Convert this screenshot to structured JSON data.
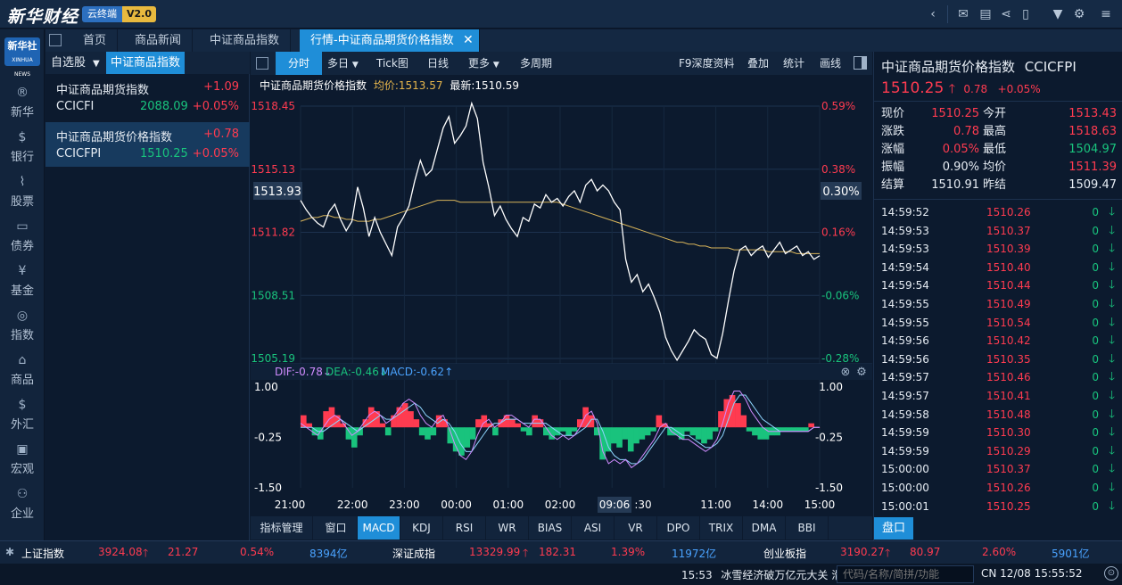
{
  "app": {
    "logo_text": "新华财经",
    "cloud_label": "云终端",
    "version": "V2.0"
  },
  "tabs": [
    "首页",
    "商品新闻",
    "中证商品指数",
    "行情-中证商品期货价格指数"
  ],
  "nav": [
    "新华",
    "银行",
    "股票",
    "债券",
    "基金",
    "指数",
    "商品",
    "外汇",
    "宏观",
    "企业"
  ],
  "nav_logo": "新华社",
  "watch": {
    "dropdown": "自选股",
    "tab": "中证商品指数",
    "items": [
      {
        "name": "中证商品期货指数",
        "change": "+1.09",
        "code": "CCICFI",
        "price": "2088.09",
        "pct": "+0.05%"
      },
      {
        "name": "中证商品期货价格指数",
        "change": "+0.78",
        "code": "CCICFPI",
        "price": "1510.25",
        "pct": "+0.05%"
      }
    ]
  },
  "chart_toolbar": {
    "left": [
      "分时",
      "多日",
      "Tick图",
      "日线",
      "更多",
      "多周期"
    ],
    "right": [
      "F9深度资料",
      "叠加",
      "统计",
      "画线"
    ]
  },
  "chart_header": {
    "name": "中证商品期货价格指数",
    "avg_label": "均价:1513.57",
    "last_label": "最新:1510.59"
  },
  "chart_data": {
    "type": "line",
    "title": "中证商品期货价格指数",
    "price_axis": [
      "1518.45",
      "1515.13",
      "1511.82",
      "1508.51",
      "1505.19"
    ],
    "pct_axis": [
      "0.59%",
      "0.38%",
      "0.16%",
      "-0.06%",
      "-0.28%"
    ],
    "ylim": [
      1505.19,
      1518.45
    ],
    "cursor_price": "1513.93",
    "cursor_pct": "0.30%",
    "x_ticks": [
      "21:00",
      "22:00",
      "23:00",
      "00:00",
      "01:00",
      "02:00",
      "09:06",
      ":30",
      "11:00",
      "14:00",
      "15:00"
    ],
    "series": [
      {
        "name": "最新",
        "color": "#ffffff",
        "values": [
          1513.5,
          1513,
          1512.6,
          1512.3,
          1512.1,
          1512.9,
          1513.3,
          1512.5,
          1511.9,
          1512.4,
          1514.2,
          1513.1,
          1511.6,
          1512.6,
          1511.8,
          1511.2,
          1510.6,
          1512.1,
          1512.6,
          1513.2,
          1514.5,
          1515.6,
          1514.8,
          1515.1,
          1516.2,
          1517.3,
          1517.9,
          1516.5,
          1516.9,
          1517.4,
          1518.6,
          1517.8,
          1515.5,
          1514.2,
          1512.7,
          1513.2,
          1512.5,
          1512,
          1511.6,
          1512.6,
          1512.4,
          1513.3,
          1513.1,
          1513.8,
          1513.4,
          1513.6,
          1513.2,
          1513.7,
          1514,
          1513.4,
          1514.3,
          1514.6,
          1514,
          1514.3,
          1514,
          1513.4,
          1513,
          1510.4,
          1509.2,
          1509.6,
          1508.7,
          1509.1,
          1508.4,
          1507.6,
          1506.3,
          1505.6,
          1505.1,
          1505.6,
          1506.1,
          1506.7,
          1506.4,
          1506.2,
          1505.4,
          1505.2,
          1506.5,
          1508.2,
          1509.8,
          1510.9,
          1511.1,
          1510.6,
          1510.9,
          1511.1,
          1510.5,
          1510.9,
          1511.3,
          1510.7,
          1510.9,
          1511.1,
          1510.6,
          1510.8,
          1510.4,
          1510.59
        ]
      },
      {
        "name": "均价",
        "color": "#d8b45a",
        "values": [
          1512.4,
          1512.5,
          1512.6,
          1512.6,
          1512.7,
          1512.7,
          1512.6,
          1512.6,
          1512.5,
          1512.5,
          1512.4,
          1512.4,
          1512.4,
          1512.5,
          1512.5,
          1512.6,
          1512.7,
          1512.8,
          1512.9,
          1513,
          1513.1,
          1513.2,
          1513.3,
          1513.4,
          1513.5,
          1513.5,
          1513.5,
          1513.5,
          1513.4,
          1513.4,
          1513.4,
          1513.4,
          1513.4,
          1513.4,
          1513.4,
          1513.4,
          1513.4,
          1513.4,
          1513.4,
          1513.4,
          1513.4,
          1513.4,
          1513.4,
          1513.4,
          1513.4,
          1513.4,
          1513.3,
          1513.2,
          1513.1,
          1513,
          1512.9,
          1512.8,
          1512.7,
          1512.6,
          1512.5,
          1512.4,
          1512.3,
          1512.2,
          1512.1,
          1512,
          1511.9,
          1511.8,
          1511.7,
          1511.6,
          1511.5,
          1511.4,
          1511.3,
          1511.3,
          1511.2,
          1511.2,
          1511.1,
          1511.1,
          1511,
          1511,
          1511,
          1511,
          1510.9,
          1510.9,
          1510.9,
          1510.9,
          1510.9,
          1510.9,
          1510.8,
          1510.8,
          1510.8,
          1510.8,
          1510.8,
          1510.7,
          1510.7,
          1510.7,
          1510.7,
          1510.7
        ]
      }
    ]
  },
  "macd": {
    "dif_label": "DIF:-0.78↓",
    "dea_label": "DEA:-0.46↓",
    "macd_label": "MACD:-0.62↑",
    "axis": [
      "1.00",
      "-0.25",
      "-1.50"
    ],
    "ylim": [
      -1.5,
      1.0
    ],
    "hist": [
      0.3,
      0.1,
      -0.2,
      -0.3,
      0.4,
      0.5,
      0.3,
      0.1,
      -0.3,
      -0.5,
      -0.2,
      0.2,
      0.5,
      0.4,
      0.1,
      -0.2,
      0.3,
      0.5,
      0.6,
      0.4,
      0.2,
      -0.2,
      -0.3,
      -0.2,
      0.3,
      0.2,
      -0.4,
      -0.6,
      -0.7,
      -0.5,
      -0.3,
      0.2,
      0.3,
      0.1,
      -0.2,
      0.2,
      0.3,
      0.2,
      0.1,
      -0.1,
      -0.2,
      0.3,
      0.2,
      -0.2,
      -0.3,
      -0.2,
      -0.1,
      -0.2,
      -0.1,
      0.2,
      0.5,
      0.3,
      -0.2,
      -0.8,
      -0.6,
      -0.4,
      -0.5,
      -0.3,
      -0.6,
      -0.4,
      -0.3,
      -0.2,
      -0.1,
      0.3,
      0.1,
      -0.2,
      -0.2,
      -0.3,
      -0.1,
      -0.2,
      -0.3,
      -0.4,
      -0.3,
      -0.1,
      0.4,
      0.7,
      0.8,
      0.6,
      0.3,
      -0.1,
      -0.2,
      -0.3,
      -0.3,
      -0.2,
      -0.2,
      -0.1,
      -0.1,
      -0.1,
      -0.1,
      -0.1,
      0.1,
      0.0
    ],
    "dif": [
      0.1,
      0.0,
      -0.1,
      -0.2,
      0.0,
      0.2,
      0.3,
      0.2,
      0.0,
      -0.2,
      -0.1,
      0.1,
      0.3,
      0.4,
      0.3,
      0.1,
      0.2,
      0.4,
      0.6,
      0.7,
      0.6,
      0.3,
      0.1,
      0.0,
      0.2,
      0.3,
      0.0,
      -0.4,
      -0.7,
      -0.8,
      -0.6,
      -0.2,
      0.1,
      0.2,
      0.0,
      0.1,
      0.3,
      0.3,
      0.2,
      0.1,
      0.0,
      0.2,
      0.2,
      0.0,
      -0.2,
      -0.3,
      -0.2,
      -0.3,
      -0.2,
      0.0,
      0.3,
      0.4,
      0.1,
      -0.6,
      -0.9,
      -0.8,
      -0.9,
      -0.8,
      -1.0,
      -0.9,
      -0.7,
      -0.5,
      -0.3,
      0.0,
      0.1,
      -0.1,
      -0.2,
      -0.3,
      -0.3,
      -0.4,
      -0.5,
      -0.6,
      -0.5,
      -0.3,
      0.1,
      0.6,
      0.9,
      0.9,
      0.7,
      0.4,
      0.2,
      0.0,
      -0.1,
      -0.1,
      -0.1,
      -0.1,
      -0.1,
      -0.1,
      -0.1,
      -0.1,
      0.0,
      0.0
    ],
    "dea": [
      0.0,
      0.0,
      0.0,
      -0.1,
      -0.1,
      0.0,
      0.1,
      0.2,
      0.1,
      0.0,
      -0.1,
      0.0,
      0.1,
      0.2,
      0.3,
      0.2,
      0.2,
      0.3,
      0.4,
      0.5,
      0.6,
      0.5,
      0.3,
      0.2,
      0.1,
      0.2,
      0.1,
      -0.1,
      -0.4,
      -0.6,
      -0.6,
      -0.4,
      -0.2,
      0.0,
      0.1,
      0.1,
      0.2,
      0.2,
      0.2,
      0.1,
      0.1,
      0.1,
      0.1,
      0.1,
      0.0,
      -0.1,
      -0.2,
      -0.2,
      -0.2,
      -0.1,
      0.0,
      0.2,
      0.2,
      -0.1,
      -0.5,
      -0.7,
      -0.8,
      -0.8,
      -0.9,
      -0.9,
      -0.8,
      -0.6,
      -0.4,
      -0.2,
      0.0,
      0.0,
      -0.1,
      -0.2,
      -0.2,
      -0.3,
      -0.4,
      -0.5,
      -0.5,
      -0.4,
      -0.2,
      0.2,
      0.6,
      0.8,
      0.8,
      0.6,
      0.4,
      0.2,
      0.1,
      0.0,
      -0.1,
      -0.1,
      -0.1,
      -0.1,
      -0.1,
      -0.1,
      0.0,
      0.0
    ]
  },
  "indicator_tabs": [
    "指标管理",
    "窗口",
    "MACD",
    "KDJ",
    "RSI",
    "WR",
    "BIAS",
    "ASI",
    "VR",
    "DPO",
    "TRIX",
    "DMA",
    "BBI"
  ],
  "quote": {
    "title": "中证商品期货价格指数",
    "code": "CCICFPI",
    "price": "1510.25",
    "change": "0.78",
    "pct": "+0.05%",
    "rows": [
      [
        "现价",
        "1510.25",
        "今开",
        "1513.43"
      ],
      [
        "涨跌",
        "0.78",
        "最高",
        "1518.63"
      ],
      [
        "涨幅",
        "0.05%",
        "最低",
        "1504.97"
      ],
      [
        "振幅",
        "0.90%",
        "均价",
        "1511.39"
      ],
      [
        "结算",
        "1510.91",
        "昨结",
        "1509.47"
      ]
    ]
  },
  "ticks": [
    [
      "14:59:52",
      "1510.26",
      "0"
    ],
    [
      "14:59:53",
      "1510.37",
      "0"
    ],
    [
      "14:59:53",
      "1510.39",
      "0"
    ],
    [
      "14:59:54",
      "1510.40",
      "0"
    ],
    [
      "14:59:54",
      "1510.44",
      "0"
    ],
    [
      "14:59:55",
      "1510.49",
      "0"
    ],
    [
      "14:59:55",
      "1510.54",
      "0"
    ],
    [
      "14:59:56",
      "1510.42",
      "0"
    ],
    [
      "14:59:56",
      "1510.35",
      "0"
    ],
    [
      "14:59:57",
      "1510.46",
      "0"
    ],
    [
      "14:59:57",
      "1510.41",
      "0"
    ],
    [
      "14:59:58",
      "1510.48",
      "0"
    ],
    [
      "14:59:59",
      "1510.30",
      "0"
    ],
    [
      "14:59:59",
      "1510.29",
      "0"
    ],
    [
      "15:00:00",
      "1510.37",
      "0"
    ],
    [
      "15:00:00",
      "1510.26",
      "0"
    ],
    [
      "15:00:01",
      "1510.25",
      "0"
    ]
  ],
  "panel_tab": "盘口",
  "ticker": [
    {
      "name": "上证指数",
      "value": "3924.08",
      "chg": "21.27",
      "pct": "0.54%",
      "amt": "8394亿"
    },
    {
      "name": "深证成指",
      "value": "13329.99",
      "chg": "182.31",
      "pct": "1.39%",
      "amt": "11972亿"
    },
    {
      "name": "创业板指",
      "value": "3190.27",
      "chg": "80.97",
      "pct": "2.60%",
      "amt": "5901亿"
    }
  ],
  "status": {
    "news_time": "15:53",
    "news": "冰雪经济破万亿元大关 滑",
    "search_placeholder": "代码/名称/简拼/功能",
    "clock": "CN 12/08 15:55:52"
  }
}
